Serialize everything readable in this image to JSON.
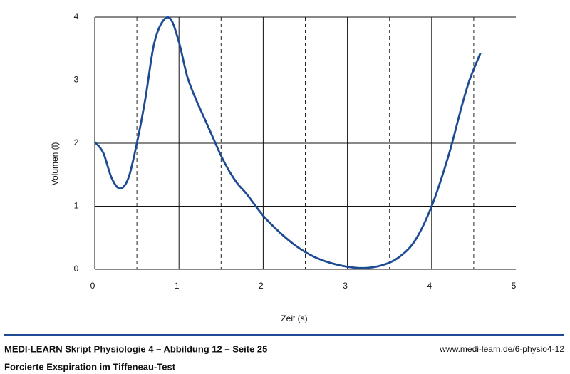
{
  "chart_data": {
    "type": "line",
    "x_label": "Zeit (s)",
    "y_label": "Volumen (l)",
    "xlim": [
      0,
      5
    ],
    "ylim": [
      0,
      4
    ],
    "xticks": [
      0,
      1,
      2,
      3,
      4,
      5
    ],
    "yticks": [
      0,
      1,
      2,
      3,
      4
    ],
    "x_minor_grid": [
      0.5,
      1.5,
      2.5,
      3.5,
      4.5
    ],
    "grid": true,
    "series": [
      {
        "color": "#1d4b93",
        "x": [
          0,
          0.1,
          0.2,
          0.3,
          0.4,
          0.5,
          0.6,
          0.7,
          0.8,
          0.9,
          1.0,
          1.1,
          1.2,
          1.3,
          1.4,
          1.5,
          1.6,
          1.7,
          1.8,
          2.0,
          2.2,
          2.4,
          2.6,
          2.8,
          3.0,
          3.2,
          3.4,
          3.6,
          3.8,
          4.0,
          4.2,
          4.35,
          4.45,
          4.58
        ],
        "values": [
          2.02,
          1.85,
          1.45,
          1.28,
          1.45,
          2.0,
          2.7,
          3.55,
          3.92,
          3.97,
          3.6,
          3.05,
          2.7,
          2.4,
          2.1,
          1.8,
          1.55,
          1.35,
          1.2,
          0.85,
          0.58,
          0.36,
          0.2,
          0.1,
          0.04,
          0.02,
          0.06,
          0.18,
          0.45,
          1.0,
          1.8,
          2.55,
          3.0,
          3.43
        ]
      }
    ]
  },
  "footer": {
    "source_line": "MEDI-LEARN Skript Physiologie 4 – Abbildung 12 – Seite 25",
    "caption": "Forcierte Exspiration im Tiffeneau-Test",
    "url": "www.medi-learn.de/6-physio4-12"
  }
}
